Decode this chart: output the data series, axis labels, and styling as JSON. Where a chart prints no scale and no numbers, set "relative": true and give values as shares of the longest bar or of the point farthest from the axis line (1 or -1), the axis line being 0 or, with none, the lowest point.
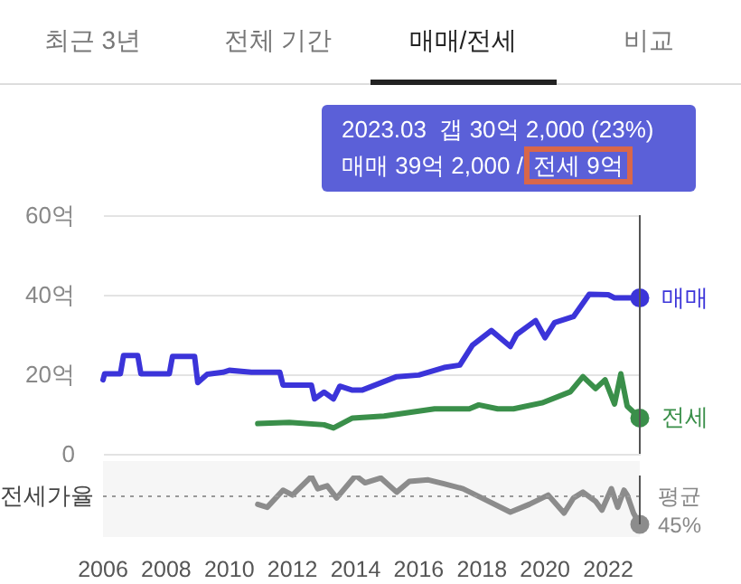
{
  "chart_data": [
    {
      "type": "line",
      "annotations": [
        "최근 3년",
        "전체 기간",
        "매매/전세",
        "비교",
        "2023.03  갭 30억 2,000 (23%)",
        "매매 39억 2,000 /",
        "전세 9억"
      ],
      "xlim": [
        2006,
        2023
      ],
      "tick_labels": "y",
      "ylim": [
        0,
        60
      ],
      "yticks": [
        {
          "value": 0,
          "label": "0"
        },
        {
          "value": 20,
          "label": "20억"
        },
        {
          "value": 40,
          "label": "40억"
        },
        {
          "value": 60,
          "label": "60억"
        }
      ],
      "grid": "y",
      "legend": false,
      "line_style": "solid",
      "ref_lines": [
        {
          "axis": "x",
          "value": 2023,
          "label": null,
          "color": "#555555"
        }
      ],
      "series": [
        {
          "name": "매매",
          "color": "#3b34d9",
          "x": [
            2006.0,
            2006.05,
            2006.55,
            2006.65,
            2007.1,
            2007.2,
            2008.1,
            2008.2,
            2008.9,
            2009.0,
            2009.3,
            2009.8,
            2010.0,
            2010.7,
            2011.0,
            2011.6,
            2011.7,
            2012.6,
            2012.7,
            2013.0,
            2013.3,
            2013.5,
            2013.9,
            2014.2,
            2015.3,
            2016.0,
            2016.8,
            2017.3,
            2017.7,
            2018.3,
            2018.9,
            2019.1,
            2019.7,
            2020.0,
            2020.3,
            2020.9,
            2021.4,
            2022.0,
            2022.2,
            2023.0
          ],
          "values": [
            18.6,
            20.1,
            20.1,
            24.7,
            24.7,
            20.1,
            20.1,
            24.5,
            24.5,
            17.9,
            20.0,
            20.5,
            21.0,
            20.5,
            20.5,
            20.5,
            17.3,
            17.3,
            13.8,
            15.5,
            13.8,
            17.0,
            16.0,
            16.0,
            19.4,
            19.8,
            21.7,
            22.3,
            27.3,
            31,
            27,
            30,
            33.5,
            29.2,
            33,
            34.5,
            40.1,
            40,
            39.2,
            39.2
          ]
        },
        {
          "name": "전세",
          "color": "#3a8f4a",
          "x": [
            2010.9,
            2011.9,
            2013.0,
            2013.3,
            2013.9,
            2014.9,
            2016.5,
            2017.6,
            2017.9,
            2018.5,
            2019.0,
            2019.9,
            2020.8,
            2021.2,
            2021.6,
            2021.9,
            2022.2,
            2022.4,
            2022.6,
            2023.0
          ],
          "values": [
            7.6,
            7.9,
            7.3,
            6.5,
            9,
            9.5,
            11.3,
            11.3,
            12.3,
            11.3,
            11.3,
            12.8,
            15.6,
            19.4,
            16.4,
            18.6,
            12.5,
            20.1,
            12,
            9
          ]
        }
      ]
    },
    {
      "type": "line",
      "relative": true,
      "ylabel": "전세가율",
      "xlim": [
        2006,
        2023
      ],
      "xticks": [
        2006,
        2008,
        2010,
        2012,
        2014,
        2016,
        2018,
        2020,
        2022
      ],
      "tick_labels": "x",
      "legend": false,
      "ref_lines": [
        {
          "axis": "y",
          "value": 0.575,
          "label": "평균 45%",
          "color": "#999999",
          "line_style": "dotted"
        },
        {
          "axis": "x",
          "value": 2023,
          "label": null,
          "color": "#555555"
        }
      ],
      "series": [
        {
          "color": "#8c8c8c",
          "x": [
            2010.9,
            2011.2,
            2011.7,
            2012.0,
            2012.6,
            2012.8,
            2013.1,
            2013.4,
            2014.0,
            2014.3,
            2014.8,
            2015.3,
            2015.7,
            2016.3,
            2016.8,
            2017.4,
            2018.0,
            2018.9,
            2019.5,
            2020.1,
            2020.6,
            2020.9,
            2021.2,
            2021.6,
            2021.8,
            2022.1,
            2022.3,
            2022.5,
            2022.6,
            2022.8,
            2023.0
          ],
          "values": [
            0.41,
            0.35,
            0.7,
            0.6,
            0.98,
            0.73,
            0.79,
            0.54,
            1.0,
            0.85,
            0.95,
            0.66,
            0.88,
            0.91,
            0.83,
            0.73,
            0.54,
            0.25,
            0.41,
            0.6,
            0.23,
            0.54,
            0.66,
            0.47,
            0.29,
            0.73,
            0.35,
            0.7,
            0.6,
            0.23,
            0
          ]
        }
      ]
    }
  ]
}
